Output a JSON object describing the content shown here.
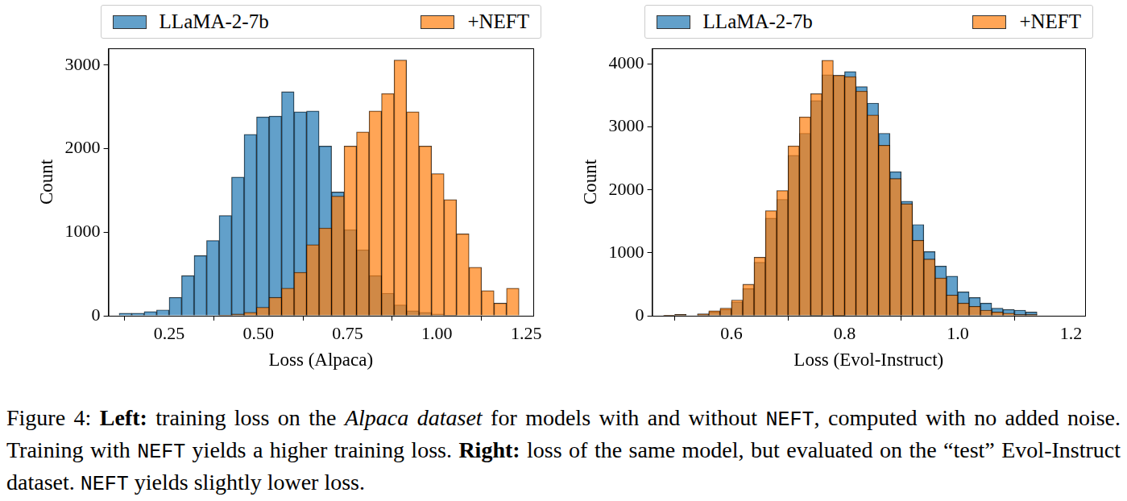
{
  "chart_data": [
    {
      "type": "histogram",
      "xlabel": "Loss (Alpaca)",
      "ylabel": "Count",
      "bins": [
        0.11,
        0.145,
        0.18,
        0.215,
        0.25,
        0.285,
        0.32,
        0.355,
        0.39,
        0.425,
        0.46,
        0.495,
        0.53,
        0.565,
        0.6,
        0.635,
        0.67,
        0.705,
        0.74,
        0.775,
        0.81,
        0.845,
        0.88,
        0.915,
        0.95,
        0.985,
        1.02,
        1.055,
        1.09,
        1.125,
        1.16,
        1.195,
        1.23
      ],
      "series": [
        {
          "name": "LLaMA-2-7b",
          "color": "#1f77b4",
          "values": [
            30,
            30,
            50,
            70,
            220,
            480,
            720,
            900,
            1200,
            1660,
            2170,
            2380,
            2390,
            2680,
            2440,
            2450,
            2030,
            1480,
            1030,
            790,
            480,
            270,
            130,
            60,
            40,
            20,
            10,
            0,
            0,
            0,
            0,
            0
          ]
        },
        {
          "name": "+NEFT",
          "color": "#ff7f0e",
          "values": [
            0,
            0,
            0,
            0,
            0,
            0,
            0,
            0,
            10,
            20,
            40,
            100,
            220,
            330,
            520,
            850,
            1050,
            1430,
            2030,
            2200,
            2450,
            2660,
            3060,
            2440,
            2030,
            1700,
            1390,
            980,
            580,
            300,
            150,
            330
          ]
        }
      ],
      "xlim": [
        0.08,
        1.27
      ],
      "xticks": [
        0.25,
        {
          "value": 0.5,
          "label": "0.50"
        },
        0.75,
        {
          "value": 1,
          "label": "1.00"
        },
        1.25
      ],
      "ylim": [
        0,
        3200
      ],
      "yticks": [
        0,
        1000,
        2000,
        3000
      ],
      "legend": "top",
      "grid": false
    },
    {
      "type": "histogram",
      "xlabel": "Loss (Evol-Instruct)",
      "ylabel": "Count",
      "bins": [
        0.48,
        0.5,
        0.52,
        0.54,
        0.56,
        0.58,
        0.6,
        0.62,
        0.64,
        0.66,
        0.68,
        0.7,
        0.72,
        0.74,
        0.76,
        0.78,
        0.8,
        0.82,
        0.84,
        0.86,
        0.88,
        0.9,
        0.92,
        0.94,
        0.96,
        0.98,
        1.0,
        1.02,
        1.04,
        1.06,
        1.08,
        1.1,
        1.12,
        1.14,
        1.16,
        1.18,
        1.2
      ],
      "series": [
        {
          "name": "LLaMA-2-7b",
          "color": "#1f77b4",
          "values": [
            10,
            20,
            0,
            20,
            60,
            100,
            220,
            430,
            850,
            1550,
            1850,
            2550,
            2900,
            3420,
            3830,
            3820,
            3880,
            3640,
            3380,
            2900,
            2290,
            1820,
            1450,
            1020,
            790,
            630,
            380,
            290,
            200,
            120,
            100,
            90,
            60,
            0,
            0,
            0
          ]
        },
        {
          "name": "+NEFT",
          "color": "#ff7f0e",
          "values": [
            10,
            20,
            0,
            30,
            80,
            120,
            250,
            500,
            930,
            1670,
            1990,
            2700,
            3160,
            3530,
            4060,
            3820,
            3800,
            3570,
            3190,
            2710,
            2180,
            1780,
            1200,
            900,
            600,
            330,
            200,
            150,
            90,
            60,
            40,
            20,
            20,
            0,
            0,
            0
          ]
        }
      ],
      "xlim": [
        0.46,
        1.225
      ],
      "xticks": [
        0.6,
        0.8,
        {
          "value": 1,
          "label": "1.0"
        },
        1.2
      ],
      "ylim": [
        0,
        4250
      ],
      "yticks": [
        0,
        1000,
        2000,
        3000,
        4000
      ],
      "legend": "top",
      "grid": false
    }
  ],
  "caption": [
    {
      "text": "Figure 4: ",
      "style": "normal"
    },
    {
      "text": "Left:",
      "style": "bold"
    },
    {
      "text": " training loss on the ",
      "style": "normal"
    },
    {
      "text": "Alpaca dataset",
      "style": "italic"
    },
    {
      "text": " for models with and without ",
      "style": "normal"
    },
    {
      "text": "NEFT",
      "style": "mono"
    },
    {
      "text": ", computed with no added noise.  Training with ",
      "style": "normal"
    },
    {
      "text": "NEFT",
      "style": "mono"
    },
    {
      "text": " yields a higher training loss.  ",
      "style": "normal"
    },
    {
      "text": "Right:",
      "style": "bold"
    },
    {
      "text": " loss of the same model, but evaluated on the “test” Evol-Instruct dataset. ",
      "style": "normal"
    },
    {
      "text": "NEFT",
      "style": "mono"
    },
    {
      "text": " yields slightly lower loss.",
      "style": "normal"
    }
  ]
}
